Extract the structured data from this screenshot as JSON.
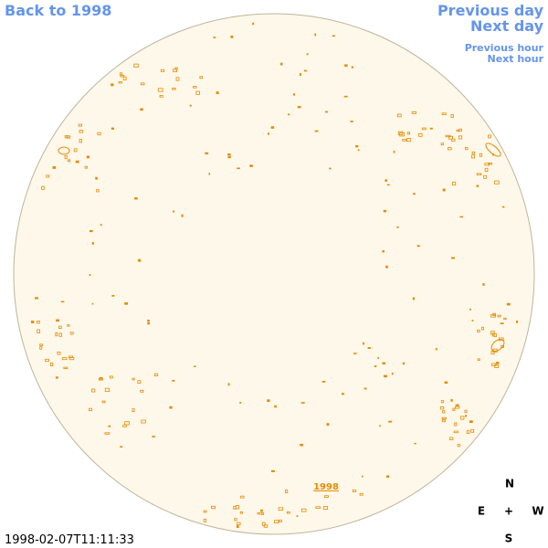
{
  "nav": {
    "back": "Back to 1998",
    "previous_day": "Previous day",
    "next_day": "Next day",
    "previous_hour": "Previous hour",
    "next_hour": "Next hour"
  },
  "disk_link": "1998",
  "compass": {
    "north": "N",
    "east": "E",
    "center": "+",
    "west": "W",
    "south": "S"
  },
  "timestamp": "1998-02-07T11:11:33"
}
